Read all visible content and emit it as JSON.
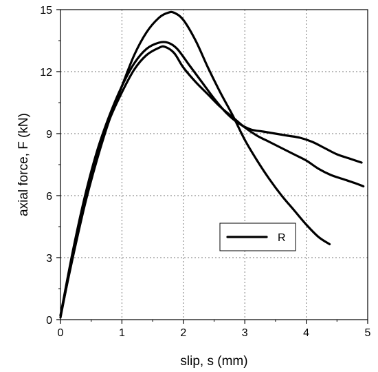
{
  "chart_data": {
    "type": "line",
    "title": "",
    "xlabel": "slip, s (mm)",
    "ylabel": "axial force, F (kN)",
    "xlim": [
      0,
      5
    ],
    "ylim": [
      0,
      15
    ],
    "xticks": [
      0,
      1,
      2,
      3,
      4,
      5
    ],
    "yticks": [
      0,
      3,
      6,
      9,
      12,
      15
    ],
    "xtick_labels": [
      "0",
      "1",
      "2",
      "3",
      "4",
      "5"
    ],
    "ytick_labels": [
      "0",
      "3",
      "6",
      "9",
      "12",
      "15"
    ],
    "grid": true,
    "legend": {
      "position": "lower-right",
      "entries": [
        "R"
      ]
    },
    "series": [
      {
        "name": "R",
        "color": "#000000",
        "x": [
          0,
          0.2,
          0.4,
          0.6,
          0.8,
          1.0,
          1.2,
          1.4,
          1.6,
          1.75,
          1.85,
          2.0,
          2.2,
          2.4,
          2.6,
          2.8,
          3.0,
          3.2,
          3.4,
          3.6,
          3.8,
          4.0,
          4.2,
          4.38
        ],
        "y": [
          0.2,
          3.0,
          5.6,
          7.8,
          9.7,
          11.3,
          12.8,
          13.9,
          14.6,
          14.85,
          14.85,
          14.5,
          13.5,
          12.2,
          11.0,
          9.9,
          8.7,
          7.7,
          6.8,
          6.0,
          5.3,
          4.6,
          4.0,
          3.65
        ]
      },
      {
        "name": "",
        "color": "#000000",
        "x": [
          0,
          0.2,
          0.4,
          0.6,
          0.8,
          1.0,
          1.2,
          1.4,
          1.6,
          1.75,
          1.9,
          2.1,
          2.3,
          2.5,
          2.7,
          2.9,
          3.1,
          3.3,
          3.5,
          3.7,
          3.9,
          4.1,
          4.3,
          4.5,
          4.7,
          4.9
        ],
        "y": [
          0.2,
          3.3,
          6.0,
          8.2,
          9.9,
          11.3,
          12.4,
          13.1,
          13.4,
          13.4,
          13.1,
          12.3,
          11.5,
          10.7,
          10.0,
          9.5,
          9.2,
          9.1,
          9.0,
          8.9,
          8.8,
          8.6,
          8.3,
          8.0,
          7.8,
          7.6
        ]
      },
      {
        "name": "",
        "color": "#000000",
        "x": [
          0,
          0.2,
          0.4,
          0.6,
          0.8,
          1.0,
          1.2,
          1.4,
          1.6,
          1.7,
          1.85,
          2.0,
          2.2,
          2.4,
          2.6,
          2.8,
          3.0,
          3.2,
          3.4,
          3.6,
          3.8,
          4.0,
          4.2,
          4.4,
          4.6,
          4.8,
          4.93
        ],
        "y": [
          0.1,
          3.1,
          5.8,
          8.0,
          9.7,
          11.0,
          12.1,
          12.8,
          13.15,
          13.2,
          12.9,
          12.2,
          11.5,
          10.9,
          10.3,
          9.8,
          9.3,
          8.9,
          8.6,
          8.3,
          8.0,
          7.7,
          7.3,
          7.0,
          6.8,
          6.6,
          6.45
        ]
      }
    ]
  }
}
